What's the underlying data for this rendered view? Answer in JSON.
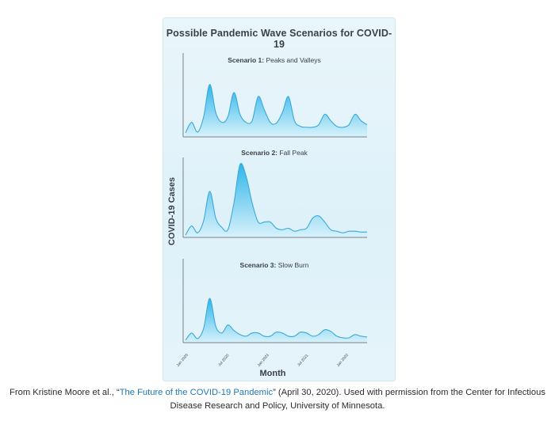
{
  "figure": {
    "title": "Possible Pandemic Wave Scenarios for COVID-19"
  },
  "caption": {
    "prefix": "From Kristine Moore et al., “",
    "link_text": "The Future of the COVID-19 Pandemic",
    "suffix": "” (April 30, 2020). Used with permission from the Center for Infectious Disease Research and Policy, University of Minnesota."
  },
  "colors": {
    "fill_top": "#2eb5ea",
    "fill_bottom": "#d8f2fb",
    "stroke": "#3aa9d9",
    "axis": "#7a7f86"
  },
  "chart_data": {
    "type": "area",
    "ylabel": "COVID-19 Cases",
    "xlabel": "Month",
    "x_ticks": [
      "Jan 2020",
      "Jul 2020",
      "Jan 2021",
      "Jul 2021",
      "Jan 2022"
    ],
    "panels": [
      {
        "label_bold": "Scenario 1:",
        "label_rest": " Peaks and Valleys",
        "x": [
          0,
          1,
          2,
          3,
          4,
          5,
          6,
          7,
          8,
          9,
          10,
          11,
          12,
          13,
          14,
          15,
          16,
          17,
          18,
          19,
          20,
          21,
          22,
          23,
          24,
          25,
          26,
          27,
          28,
          29,
          30
        ],
        "y": [
          0.05,
          0.18,
          0.06,
          0.25,
          0.65,
          0.3,
          0.18,
          0.25,
          0.55,
          0.28,
          0.18,
          0.2,
          0.5,
          0.34,
          0.18,
          0.17,
          0.3,
          0.5,
          0.2,
          0.13,
          0.12,
          0.12,
          0.15,
          0.28,
          0.2,
          0.13,
          0.12,
          0.15,
          0.28,
          0.2,
          0.15
        ]
      },
      {
        "label_bold": "Scenario 2:",
        "label_rest": " Fall Peak",
        "x": [
          0,
          1,
          2,
          3,
          4,
          5,
          6,
          7,
          8,
          9,
          10,
          11,
          12,
          13,
          14,
          15,
          16,
          17,
          18,
          19,
          20,
          21,
          22,
          23,
          24,
          25,
          26,
          27,
          28,
          29,
          30
        ],
        "y": [
          0.03,
          0.15,
          0.06,
          0.22,
          0.6,
          0.25,
          0.13,
          0.1,
          0.45,
          0.95,
          0.8,
          0.45,
          0.2,
          0.2,
          0.2,
          0.12,
          0.1,
          0.12,
          0.08,
          0.1,
          0.12,
          0.25,
          0.28,
          0.2,
          0.1,
          0.08,
          0.06,
          0.08,
          0.08,
          0.07,
          0.07
        ]
      },
      {
        "label_bold": "Scenario 3:",
        "label_rest": " Slow Burn",
        "x": [
          0,
          1,
          2,
          3,
          4,
          5,
          6,
          7,
          8,
          9,
          10,
          11,
          12,
          13,
          14,
          15,
          16,
          17,
          18,
          19,
          20,
          21,
          22,
          23,
          24,
          25,
          26,
          27,
          28,
          29,
          30
        ],
        "y": [
          0.03,
          0.12,
          0.05,
          0.18,
          0.55,
          0.2,
          0.12,
          0.22,
          0.15,
          0.1,
          0.08,
          0.12,
          0.12,
          0.08,
          0.08,
          0.13,
          0.12,
          0.08,
          0.08,
          0.13,
          0.12,
          0.08,
          0.1,
          0.16,
          0.14,
          0.08,
          0.06,
          0.06,
          0.1,
          0.08,
          0.07
        ]
      }
    ]
  }
}
